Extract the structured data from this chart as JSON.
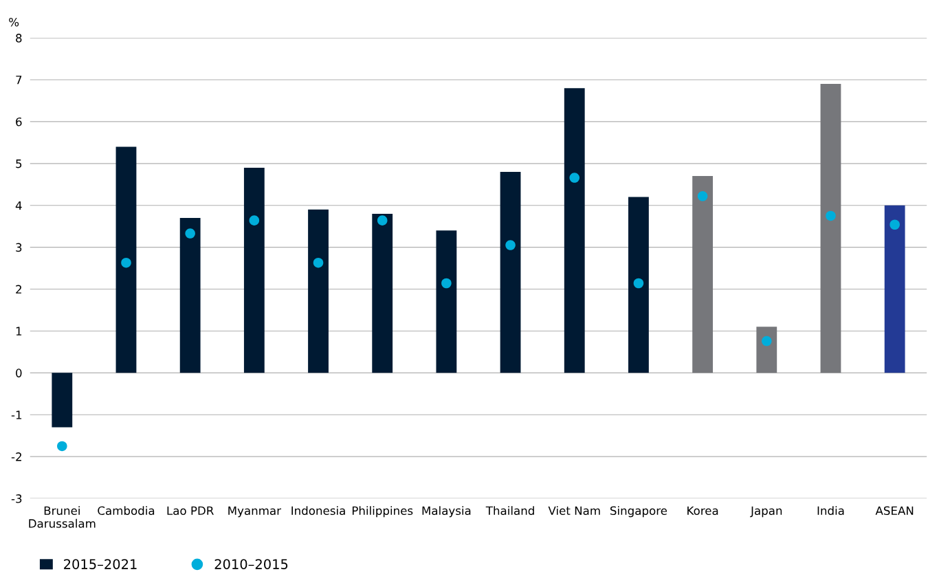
{
  "chart_data": {
    "type": "bar",
    "ylabel": "%",
    "categories": [
      "Brunei\nDarussalam",
      "Cambodia",
      "Lao PDR",
      "Myanmar",
      "Indonesia",
      "Philippines",
      "Malaysia",
      "Thailand",
      "Viet Nam",
      "Singapore",
      "Korea",
      "Japan",
      "India",
      "ASEAN"
    ],
    "series": [
      {
        "name": "2015–2021",
        "color": "#001a33",
        "colors": [
          "#001a33",
          "#001a33",
          "#001a33",
          "#001a33",
          "#001a33",
          "#001a33",
          "#001a33",
          "#001a33",
          "#001a33",
          "#001a33",
          "#76777b",
          "#76777b",
          "#76777b",
          "#233a95"
        ],
        "values": [
          -1.3,
          5.4,
          3.7,
          4.9,
          3.9,
          3.8,
          3.4,
          4.8,
          6.8,
          4.2,
          4.7,
          1.1,
          6.9,
          4.0
        ]
      },
      {
        "name": "2010–2015",
        "type": "scatter",
        "color": "#00aedb",
        "values": [
          -1.75,
          2.63,
          3.33,
          3.64,
          2.63,
          3.64,
          2.14,
          3.05,
          4.66,
          2.14,
          4.22,
          0.76,
          3.75,
          3.54
        ]
      }
    ],
    "ylim": [
      -3,
      8
    ],
    "yticks": [
      -3,
      -2,
      -1,
      0,
      1,
      2,
      3,
      4,
      5,
      6,
      7,
      8
    ],
    "grid": "y",
    "legend": "bottom left",
    "marker": "circle"
  }
}
